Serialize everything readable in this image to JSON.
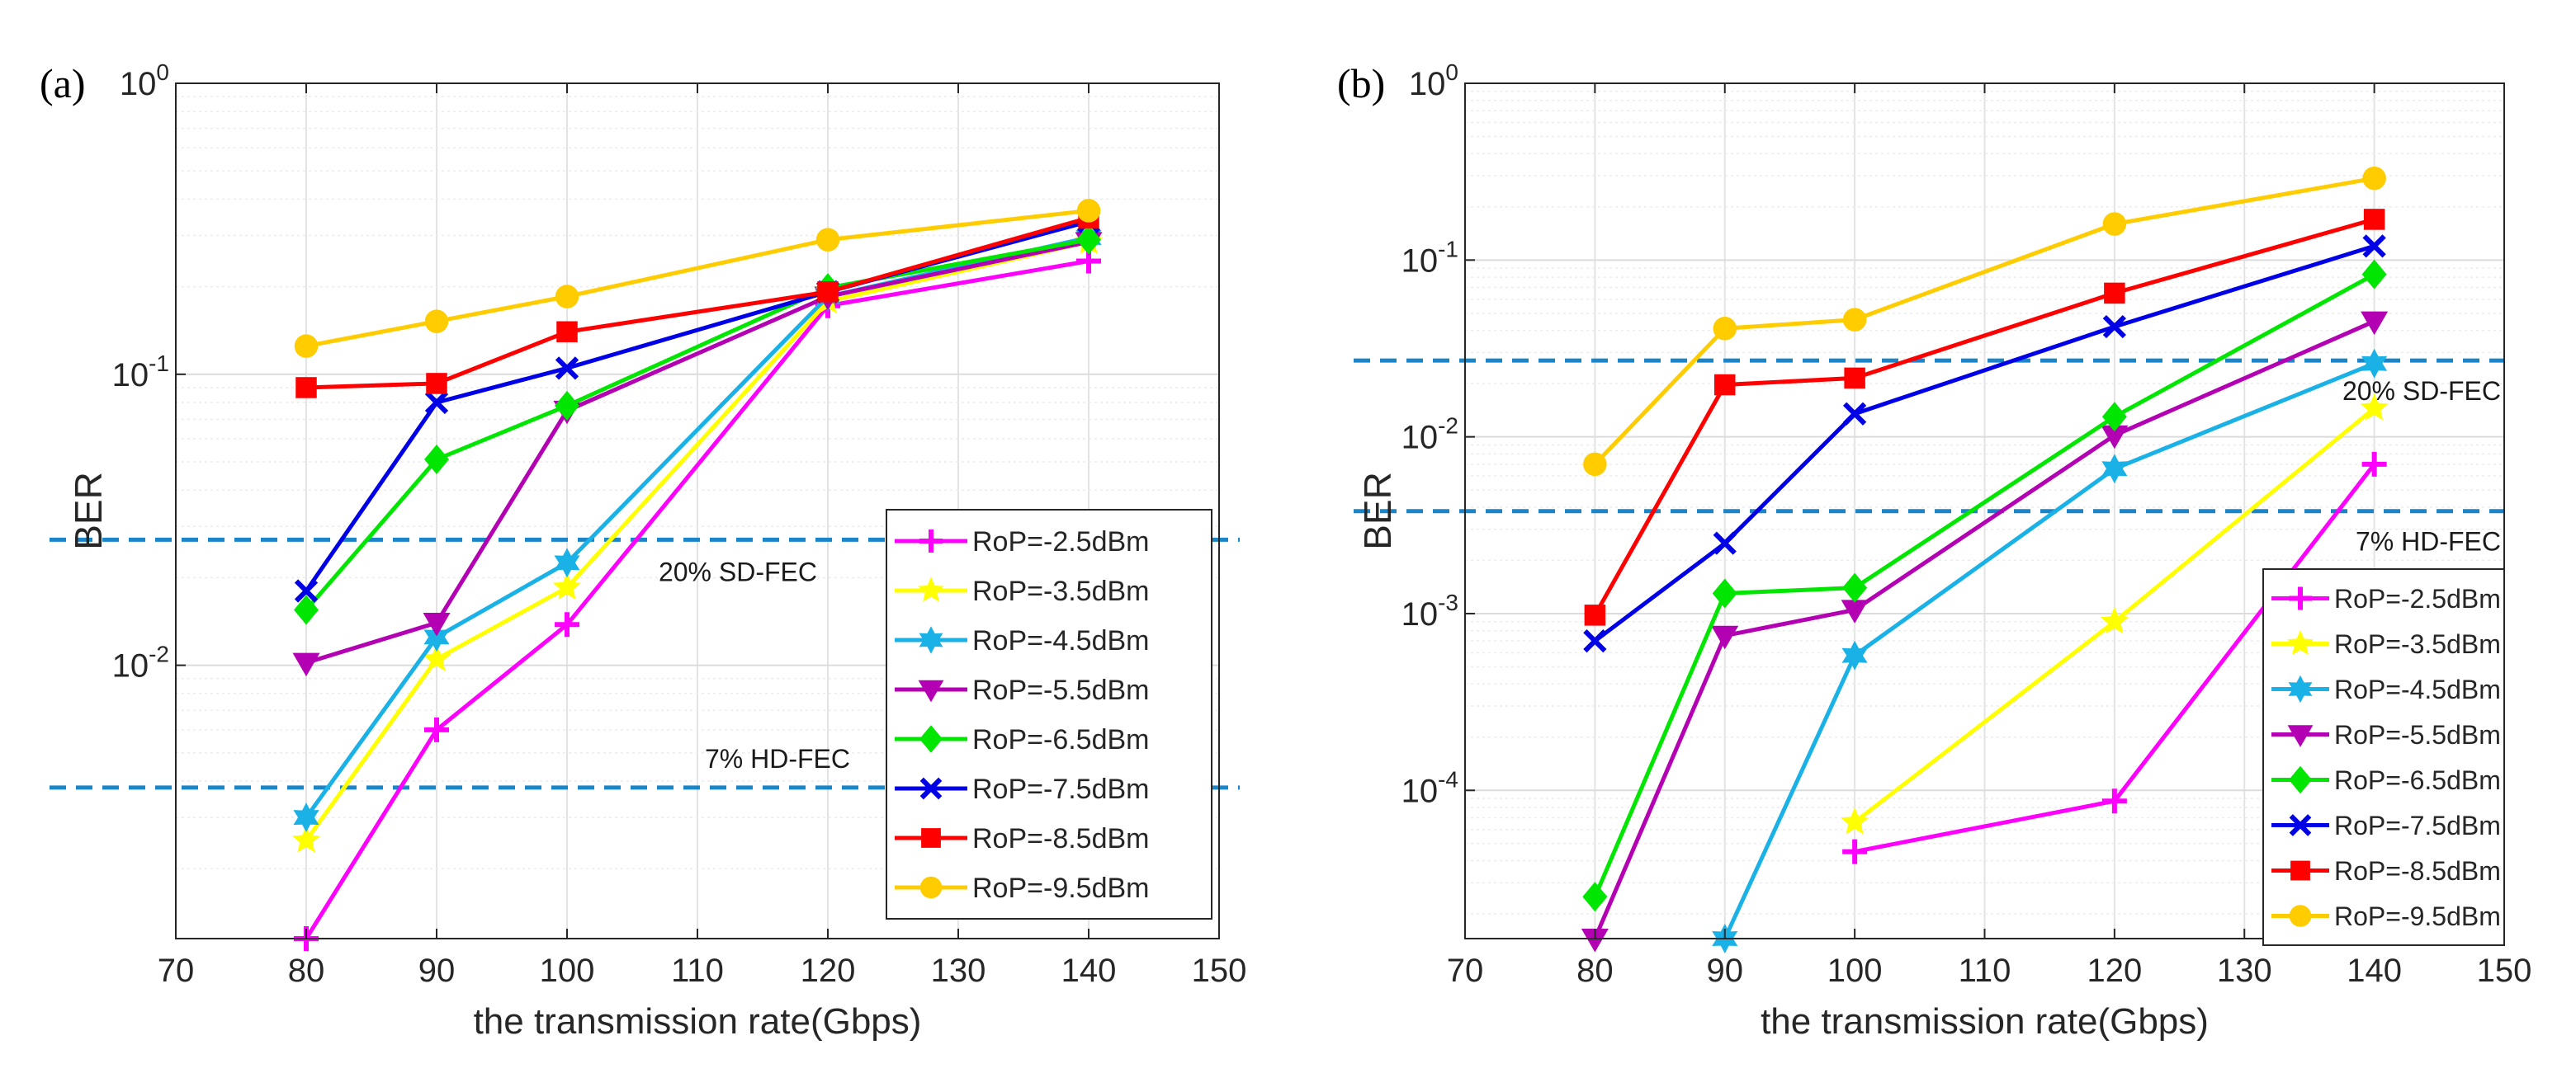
{
  "figure": {
    "panel_labels": [
      "(a)",
      "(b)"
    ]
  },
  "chart_data": [
    {
      "type": "line",
      "panel": "(a)",
      "title": "",
      "xlabel": "the transmission rate(Gbps)",
      "ylabel": "BER",
      "x_ticks": [
        70,
        80,
        90,
        100,
        110,
        120,
        130,
        140,
        150
      ],
      "y_tick_exponents": [
        -2,
        -1,
        0
      ],
      "xlim": [
        70,
        150
      ],
      "ylim": [
        0.00115,
        1
      ],
      "yscale": "log",
      "grid": true,
      "legend": "lower-right",
      "x": [
        80,
        90,
        100,
        120,
        140
      ],
      "thresholds": [
        {
          "value": 0.027,
          "label": "20% SD-FEC"
        },
        {
          "value": 0.0038,
          "label": "7% HD-FEC"
        }
      ],
      "series": [
        {
          "name": "RoP=-2.5dBm",
          "color": "#ff00ff",
          "marker": "plus",
          "values": [
            0.00115,
            0.006,
            0.0138,
            0.172,
            0.245
          ]
        },
        {
          "name": "RoP=-3.5dBm",
          "color": "#ffff00",
          "marker": "star",
          "values": [
            0.0025,
            0.0105,
            0.0185,
            0.178,
            0.285
          ]
        },
        {
          "name": "RoP=-4.5dBm",
          "color": "#1ab2e6",
          "marker": "hexagram",
          "values": [
            0.003,
            0.0125,
            0.0225,
            0.185,
            0.295
          ]
        },
        {
          "name": "RoP=-5.5dBm",
          "color": "#b300b3",
          "marker": "triangle-down",
          "values": [
            0.0102,
            0.014,
            0.075,
            0.185,
            0.285
          ]
        },
        {
          "name": "RoP=-6.5dBm",
          "color": "#00e600",
          "marker": "diamond",
          "values": [
            0.0155,
            0.051,
            0.078,
            0.198,
            0.29
          ]
        },
        {
          "name": "RoP=-7.5dBm",
          "color": "#0000e6",
          "marker": "x",
          "values": [
            0.018,
            0.08,
            0.105,
            0.192,
            0.335
          ]
        },
        {
          "name": "RoP=-8.5dBm",
          "color": "#ff0000",
          "marker": "square",
          "values": [
            0.09,
            0.093,
            0.14,
            0.192,
            0.345
          ]
        },
        {
          "name": "RoP=-9.5dBm",
          "color": "#ffcc00",
          "marker": "circle",
          "values": [
            0.125,
            0.152,
            0.185,
            0.29,
            0.365
          ]
        }
      ]
    },
    {
      "type": "line",
      "panel": "(b)",
      "title": "",
      "xlabel": "the transmission rate(Gbps)",
      "ylabel": "BER",
      "x_ticks": [
        70,
        80,
        90,
        100,
        110,
        120,
        130,
        140,
        150
      ],
      "y_tick_exponents": [
        -4,
        -3,
        -2,
        -1,
        0
      ],
      "xlim": [
        70,
        150
      ],
      "ylim": [
        1.45e-05,
        1
      ],
      "yscale": "log",
      "grid": true,
      "legend": "lower-right",
      "x": [
        80,
        90,
        100,
        120,
        140
      ],
      "thresholds": [
        {
          "value": 0.027,
          "label": "20% SD-FEC"
        },
        {
          "value": 0.0038,
          "label": "7% HD-FEC"
        }
      ],
      "series": [
        {
          "name": "RoP=-2.5dBm",
          "color": "#ff00ff",
          "marker": "plus",
          "values": [
            null,
            null,
            4.5e-05,
            8.7e-05,
            0.007
          ]
        },
        {
          "name": "RoP=-3.5dBm",
          "color": "#ffff00",
          "marker": "star",
          "values": [
            null,
            null,
            6.6e-05,
            0.0009,
            0.0145
          ]
        },
        {
          "name": "RoP=-4.5dBm",
          "color": "#1ab2e6",
          "marker": "hexagram",
          "values": [
            null,
            1.45e-05,
            0.00058,
            0.0066,
            0.026
          ]
        },
        {
          "name": "RoP=-5.5dBm",
          "color": "#b300b3",
          "marker": "triangle-down",
          "values": [
            1.45e-05,
            0.00075,
            0.00105,
            0.0102,
            0.045
          ]
        },
        {
          "name": "RoP=-6.5dBm",
          "color": "#00e600",
          "marker": "diamond",
          "values": [
            2.5e-05,
            0.0013,
            0.0014,
            0.013,
            0.083
          ]
        },
        {
          "name": "RoP=-7.5dBm",
          "color": "#0000e6",
          "marker": "x",
          "values": [
            0.0007,
            0.0025,
            0.0135,
            0.042,
            0.12
          ]
        },
        {
          "name": "RoP=-8.5dBm",
          "color": "#ff0000",
          "marker": "square",
          "values": [
            0.00098,
            0.0197,
            0.0215,
            0.065,
            0.17
          ]
        },
        {
          "name": "RoP=-9.5dBm",
          "color": "#ffcc00",
          "marker": "circle",
          "values": [
            0.007,
            0.041,
            0.046,
            0.16,
            0.29
          ]
        }
      ]
    }
  ]
}
